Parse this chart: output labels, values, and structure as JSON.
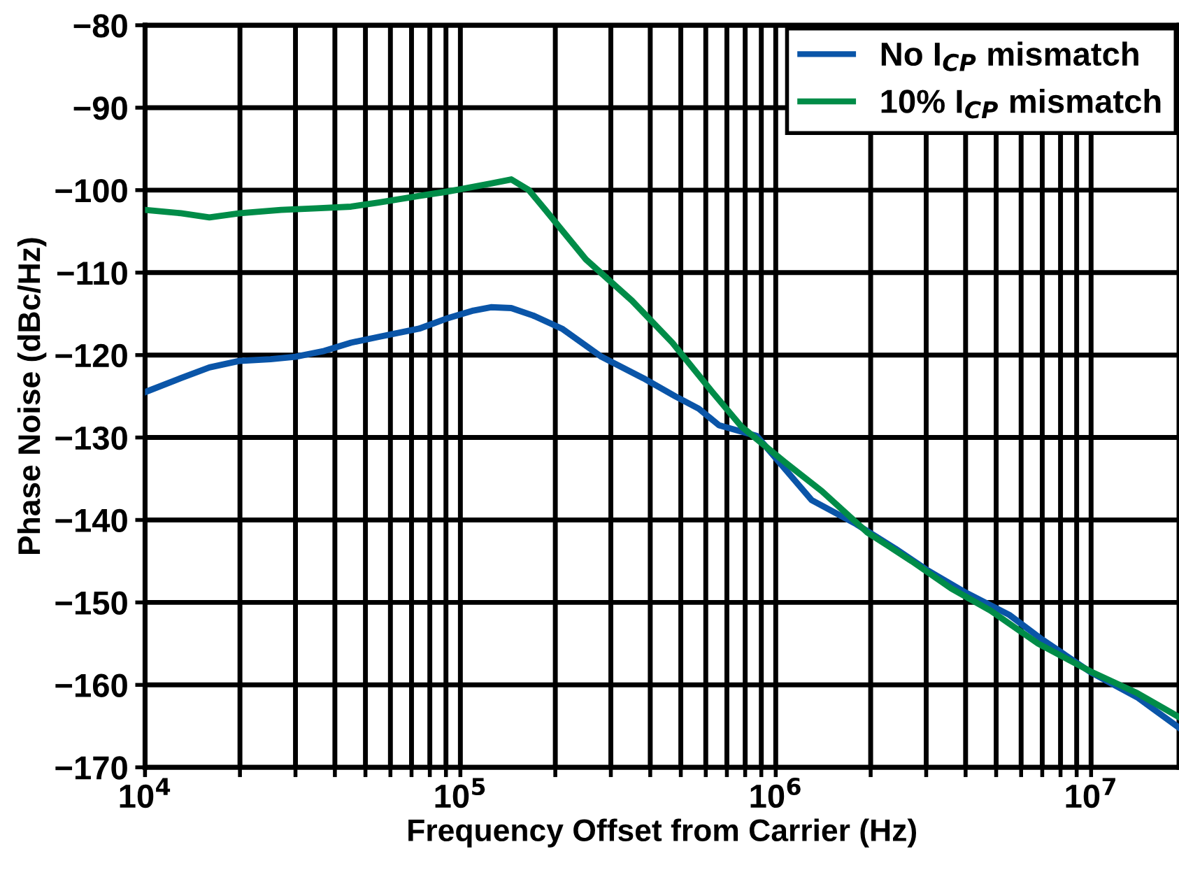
{
  "chart_data": {
    "type": "line",
    "xlabel": "Frequency Offset from Carrier (Hz)",
    "ylabel": "Phase Noise (dBc/Hz)",
    "log": "x",
    "grid": true,
    "legend": "top right",
    "line_style": "solid",
    "marker": "none",
    "xlim": [
      10000,
      19000000
    ],
    "ylim": [
      -170,
      -80
    ],
    "xticks": [
      {
        "value": 10000,
        "label": "10$^{4}$"
      },
      {
        "value": 20000,
        "label": null
      },
      {
        "value": 30000,
        "label": null
      },
      {
        "value": 40000,
        "label": null
      },
      {
        "value": 50000,
        "label": null
      },
      {
        "value": 60000,
        "label": null
      },
      {
        "value": 70000,
        "label": null
      },
      {
        "value": 80000,
        "label": null
      },
      {
        "value": 90000,
        "label": null
      },
      {
        "value": 100000,
        "label": "10$^{5}$"
      },
      {
        "value": 200000,
        "label": null
      },
      {
        "value": 300000,
        "label": null
      },
      {
        "value": 400000,
        "label": null
      },
      {
        "value": 500000,
        "label": null
      },
      {
        "value": 600000,
        "label": null
      },
      {
        "value": 700000,
        "label": null
      },
      {
        "value": 800000,
        "label": null
      },
      {
        "value": 900000,
        "label": null
      },
      {
        "value": 1000000,
        "label": "10$^{6}$"
      },
      {
        "value": 2000000,
        "label": null
      },
      {
        "value": 3000000,
        "label": null
      },
      {
        "value": 4000000,
        "label": null
      },
      {
        "value": 5000000,
        "label": null
      },
      {
        "value": 6000000,
        "label": null
      },
      {
        "value": 7000000,
        "label": null
      },
      {
        "value": 8000000,
        "label": null
      },
      {
        "value": 9000000,
        "label": null
      },
      {
        "value": 10000000,
        "label": "10$^{7}$"
      }
    ],
    "yticks": [
      -170,
      -160,
      -150,
      -140,
      -130,
      -120,
      -110,
      -100,
      -90,
      -80
    ],
    "series": [
      {
        "name": "No I$_{CP}$ mismatch",
        "color": "#0a55a8",
        "x": [
          10000,
          13000,
          16000,
          20000,
          25000,
          30000,
          37000,
          45000,
          55000,
          74000,
          90000,
          110000,
          125000,
          145000,
          170000,
          210000,
          280000,
          380000,
          480000,
          570000,
          660000,
          870000,
          1000000,
          1300000,
          1800000,
          2400000,
          3000000,
          4000000,
          5500000,
          7000000,
          10000000,
          14000000,
          19000000
        ],
        "values": [
          -124.5,
          -122.8,
          -121.5,
          -120.7,
          -120.5,
          -120.2,
          -119.5,
          -118.5,
          -117.8,
          -116.8,
          -115.6,
          -114.6,
          -114.2,
          -114.3,
          -115.2,
          -116.8,
          -120.2,
          -122.8,
          -125,
          -126.5,
          -128.5,
          -129.8,
          -132.5,
          -137.6,
          -140.5,
          -143.5,
          -146,
          -148.8,
          -151.5,
          -154.5,
          -158.5,
          -161.5,
          -165.2
        ]
      },
      {
        "name": "10% I$_{CP}$ mismatch",
        "color": "#008c48",
        "x": [
          10000,
          13000,
          16000,
          20000,
          27000,
          35000,
          45000,
          55000,
          74000,
          90000,
          100000,
          125000,
          145000,
          165000,
          186000,
          250000,
          350000,
          470000,
          630000,
          780000,
          1070000,
          1400000,
          1950000,
          2700000,
          3600000,
          4800000,
          6800000,
          10000000,
          14000000,
          19000000
        ],
        "values": [
          -102.4,
          -102.8,
          -103.3,
          -102.8,
          -102.4,
          -102.2,
          -102,
          -101.5,
          -100.7,
          -100.2,
          -99.9,
          -99.2,
          -98.7,
          -100,
          -102.4,
          -108.4,
          -113.4,
          -118.5,
          -124.5,
          -128.7,
          -133,
          -136.5,
          -141.5,
          -145,
          -148.3,
          -151,
          -155,
          -158.4,
          -161,
          -163.9
        ]
      }
    ]
  }
}
